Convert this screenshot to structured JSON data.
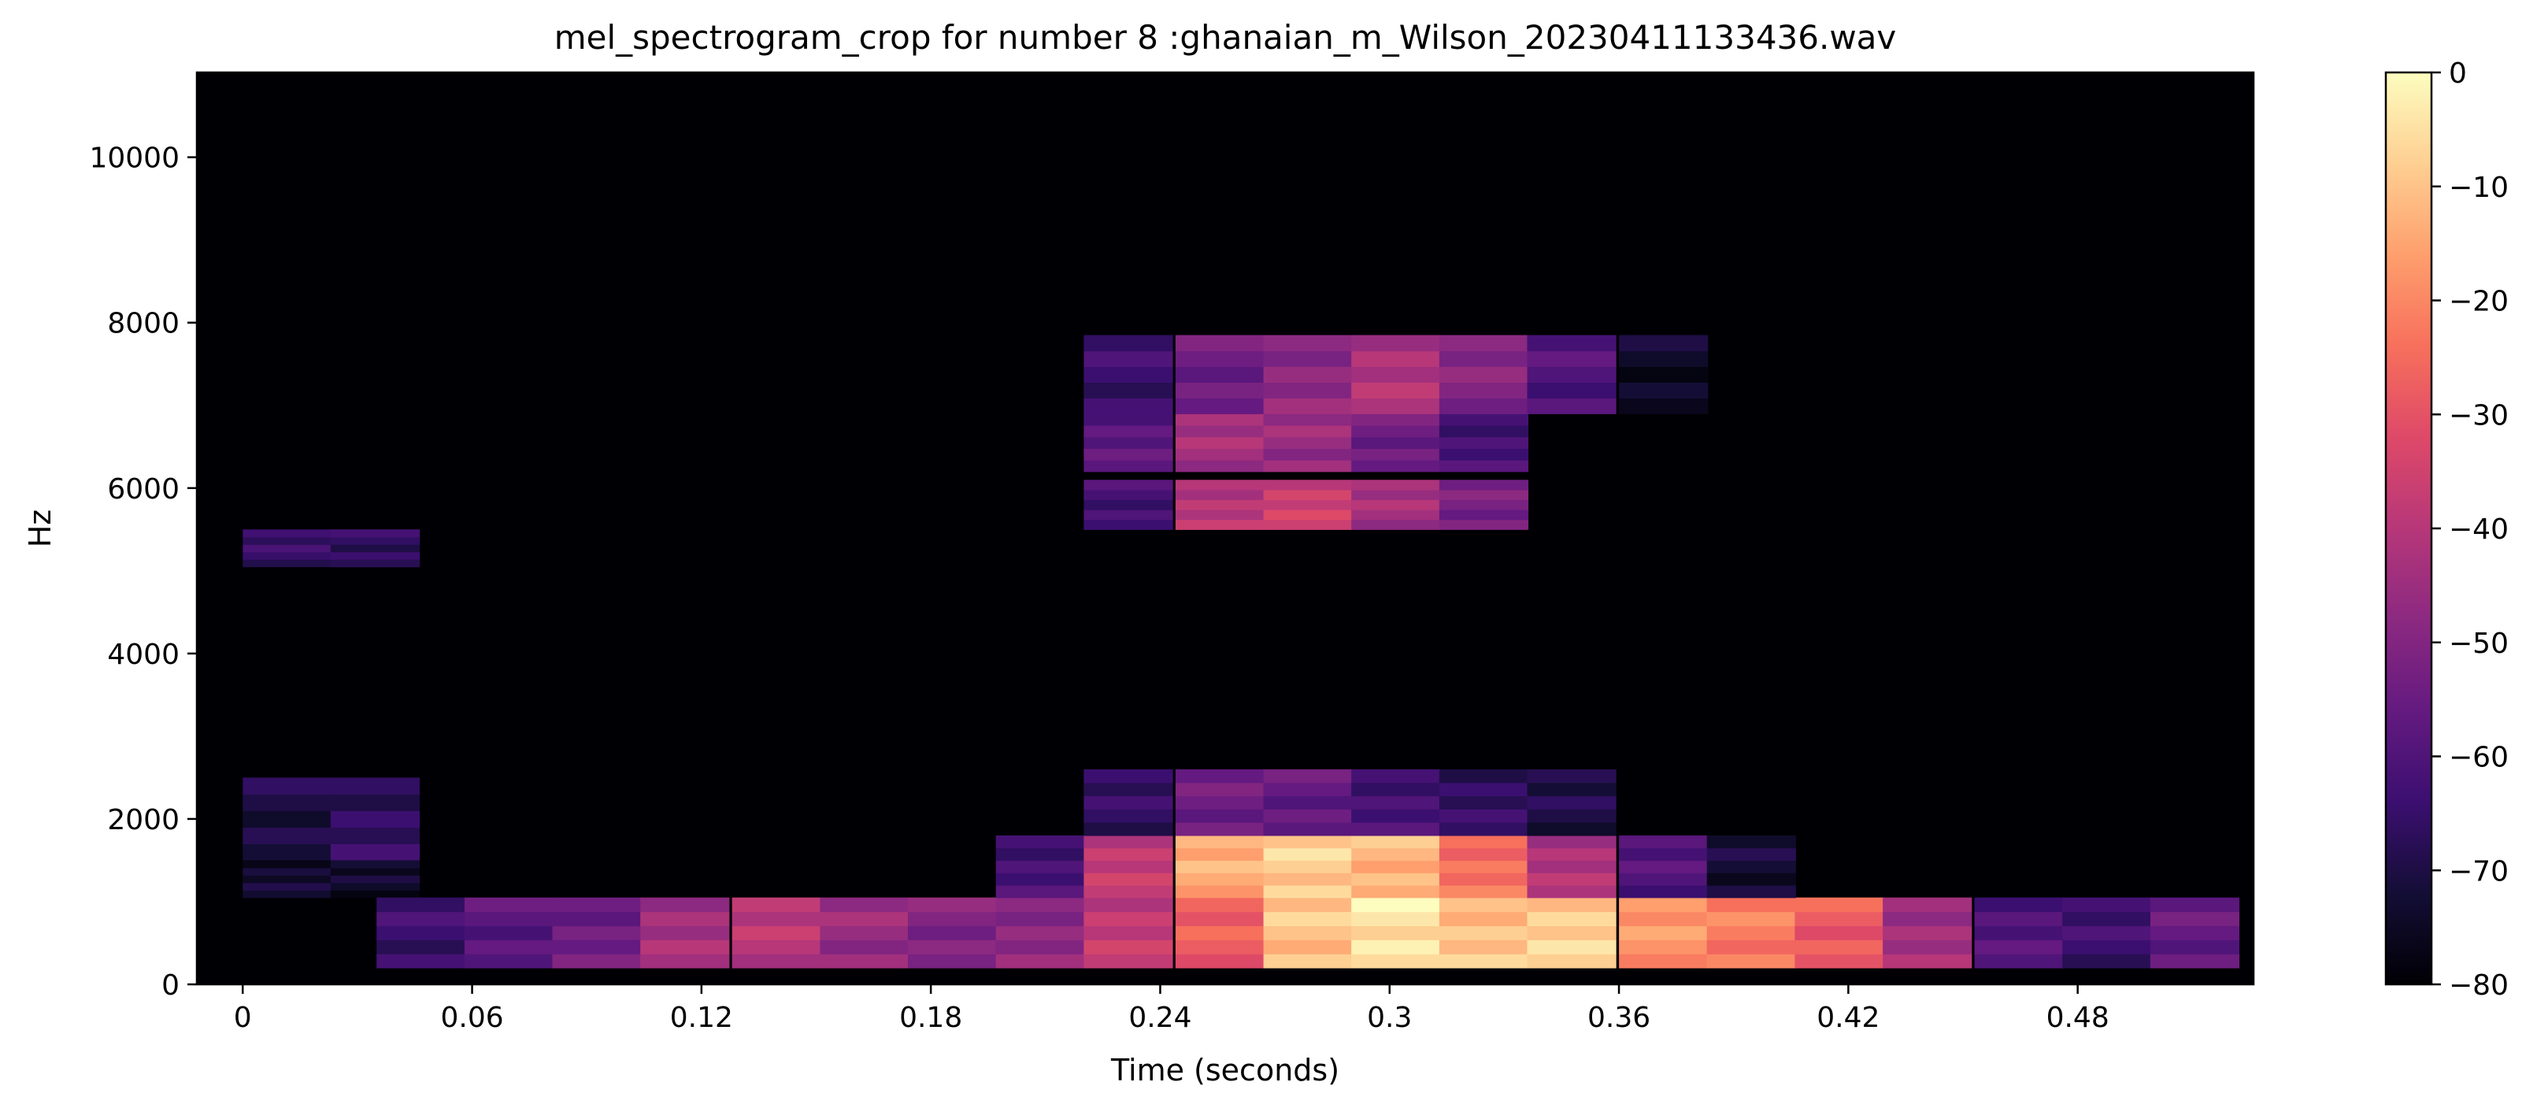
{
  "chart_data": {
    "type": "heatmap",
    "title": "mel_spectrogram_crop for number 8 :ghanaian_m_Wilson_20230411133436.wav",
    "xlabel": "Time (seconds)",
    "ylabel": "Hz",
    "xlim": [
      -0.012,
      0.526
    ],
    "ylim": [
      0,
      11025
    ],
    "x_ticks": [
      0,
      0.06,
      0.12,
      0.18,
      0.24,
      0.3,
      0.36,
      0.42,
      0.48
    ],
    "x_tick_labels": [
      "0",
      "0.06",
      "0.12",
      "0.18",
      "0.24",
      "0.3",
      "0.36",
      "0.42",
      "0.48"
    ],
    "y_ticks": [
      0,
      2000,
      4000,
      6000,
      8000,
      10000
    ],
    "y_tick_labels": [
      "0",
      "2000",
      "4000",
      "6000",
      "8000",
      "10000"
    ],
    "colorbar": {
      "range": [
        -80,
        0
      ],
      "ticks": [
        0,
        -10,
        -20,
        -30,
        -40,
        -50,
        -60,
        -70,
        -80
      ],
      "tick_labels": [
        "0",
        "−10",
        "−20",
        "−30",
        "−40",
        "−50",
        "−60",
        "−70",
        "−80"
      ],
      "colormap": "magma"
    },
    "frame_width_seconds": 0.0232,
    "background_db": -80,
    "bands": [
      {
        "f0": 5050,
        "f1": 5500,
        "t": [
          0,
          0.023,
          0.023
        ],
        "db": [
          -65,
          -64,
          -66
        ]
      },
      {
        "f0": 1500,
        "f1": 2500,
        "t": [
          0,
          0.023
        ],
        "db": [
          -70,
          -66
        ]
      },
      {
        "f0": 1050,
        "f1": 1500,
        "t": [
          0,
          0.023
        ],
        "db": [
          -73,
          -74
        ]
      },
      {
        "f0": 200,
        "f1": 1050,
        "t": [
          0.035,
          0.058,
          0.081,
          0.104,
          0.128,
          0.151,
          0.174,
          0.197,
          0.22,
          0.244,
          0.267,
          0.29,
          0.313,
          0.336,
          0.36,
          0.383,
          0.406,
          0.429,
          0.453,
          0.476,
          0.499
        ],
        "db": [
          -64,
          -58,
          -54,
          -44,
          -40,
          -46,
          -50,
          -48,
          -38,
          -28,
          -10,
          -4,
          -10,
          -8,
          -18,
          -22,
          -28,
          -44,
          -60,
          -64,
          -56
        ]
      },
      {
        "f0": 1050,
        "f1": 1800,
        "t": [
          0.197,
          0.22,
          0.244,
          0.267,
          0.29,
          0.313,
          0.336,
          0.36,
          0.383
        ],
        "db": [
          -62,
          -38,
          -14,
          -8,
          -12,
          -24,
          -42,
          -60,
          -72
        ]
      },
      {
        "f0": 1800,
        "f1": 2600,
        "t": [
          0.22,
          0.244,
          0.267,
          0.29,
          0.313,
          0.336
        ],
        "db": [
          -66,
          -54,
          -56,
          -62,
          -66,
          -70
        ]
      },
      {
        "f0": 5500,
        "f1": 6100,
        "t": [
          0.22,
          0.244,
          0.267,
          0.29,
          0.313
        ],
        "db": [
          -62,
          -40,
          -36,
          -44,
          -52
        ]
      },
      {
        "f0": 6200,
        "f1": 6900,
        "t": [
          0.22,
          0.244,
          0.267,
          0.29,
          0.313
        ],
        "db": [
          -58,
          -44,
          -46,
          -54,
          -62
        ]
      },
      {
        "f0": 6900,
        "f1": 7850,
        "t": [
          0.22,
          0.244,
          0.267,
          0.29,
          0.313,
          0.336,
          0.36
        ],
        "db": [
          -64,
          -54,
          -48,
          -42,
          -50,
          -60,
          -74
        ]
      }
    ]
  }
}
